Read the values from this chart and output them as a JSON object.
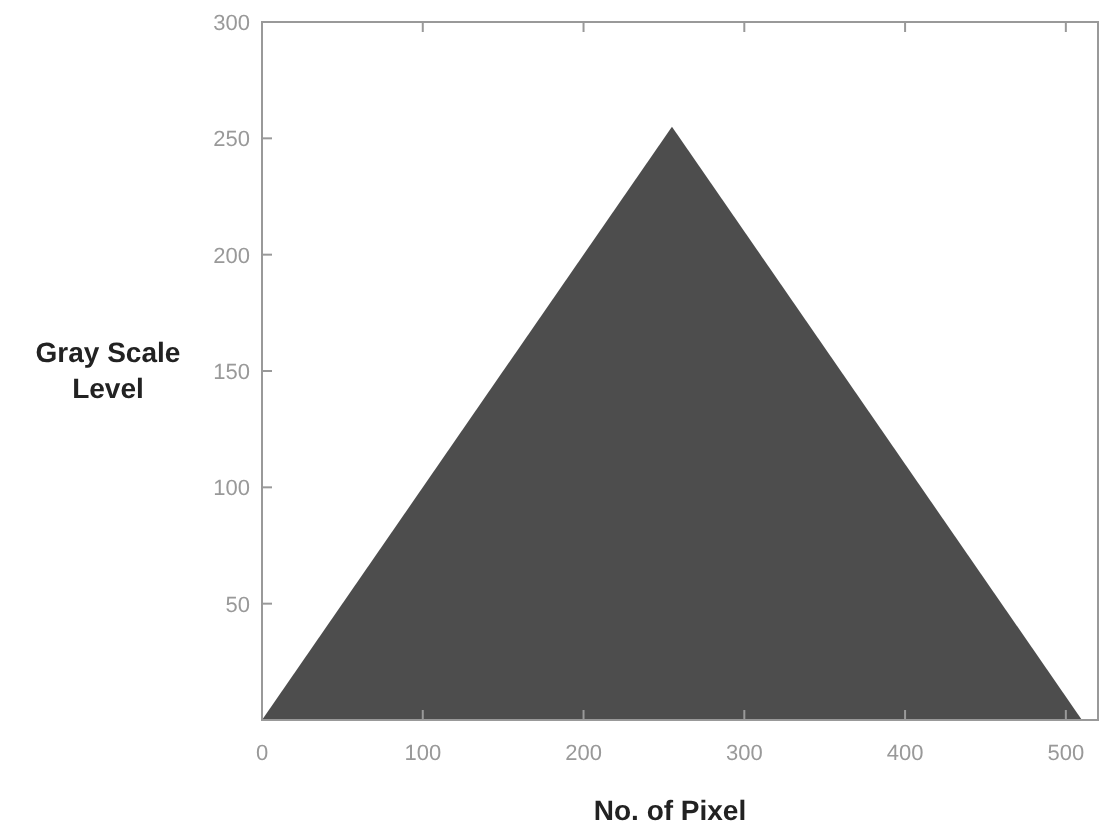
{
  "chart_data": {
    "type": "area",
    "xlabel": "No. of Pixel",
    "ylabel": "Gray Scale Level",
    "x": [
      0,
      255,
      510
    ],
    "values": [
      0,
      255,
      0
    ],
    "color": "#4d4d4d",
    "xlim": [
      0,
      520
    ],
    "xticks": [
      0,
      100,
      200,
      300,
      400,
      500
    ],
    "ylim": [
      0,
      300
    ],
    "yticks": [
      {
        "value": 0,
        "label": null
      },
      50,
      100,
      150,
      200,
      250,
      300
    ],
    "grid": false
  }
}
